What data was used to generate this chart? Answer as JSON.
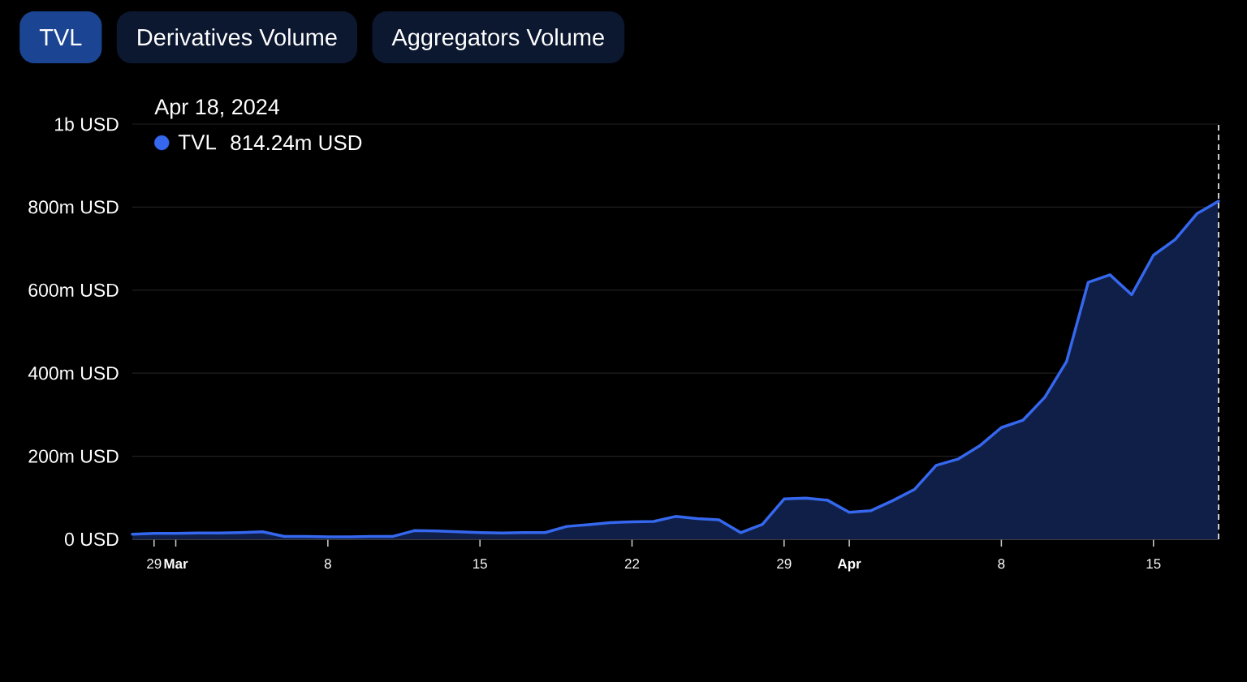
{
  "chart_data": {
    "type": "area",
    "annotations": [
      "TVL",
      "Derivatives Volume",
      "Aggregators Volume",
      "814.24m USD"
    ],
    "legend_title": "Apr 18, 2024",
    "x": [
      "2024-02-28",
      "2024-02-29",
      "2024-03-01",
      "2024-03-02",
      "2024-03-03",
      "2024-03-04",
      "2024-03-05",
      "2024-03-06",
      "2024-03-07",
      "2024-03-08",
      "2024-03-09",
      "2024-03-10",
      "2024-03-11",
      "2024-03-12",
      "2024-03-13",
      "2024-03-14",
      "2024-03-15",
      "2024-03-16",
      "2024-03-17",
      "2024-03-18",
      "2024-03-19",
      "2024-03-20",
      "2024-03-21",
      "2024-03-22",
      "2024-03-23",
      "2024-03-24",
      "2024-03-25",
      "2024-03-26",
      "2024-03-27",
      "2024-03-28",
      "2024-03-29",
      "2024-03-30",
      "2024-03-31",
      "2024-04-01",
      "2024-04-02",
      "2024-04-03",
      "2024-04-04",
      "2024-04-05",
      "2024-04-06",
      "2024-04-07",
      "2024-04-08",
      "2024-04-09",
      "2024-04-10",
      "2024-04-11",
      "2024-04-12",
      "2024-04-13",
      "2024-04-14",
      "2024-04-15",
      "2024-04-16",
      "2024-04-17",
      "2024-04-18"
    ],
    "series": [
      {
        "name": "TVL",
        "color": "#3568ee",
        "values": [
          12000000,
          14000000,
          14000000,
          15000000,
          15000000,
          16000000,
          18000000,
          7000000,
          7000000,
          6000000,
          6000000,
          7000000,
          7000000,
          21000000,
          20000000,
          18000000,
          16000000,
          15000000,
          16000000,
          16000000,
          31000000,
          35000000,
          40000000,
          42000000,
          43000000,
          55000000,
          50000000,
          47000000,
          16000000,
          36000000,
          97000000,
          99000000,
          94000000,
          65000000,
          69000000,
          93000000,
          120000000,
          178000000,
          193000000,
          225000000,
          269000000,
          287000000,
          342000000,
          428000000,
          619000000,
          637000000,
          589000000,
          684000000,
          722000000,
          784000000,
          814240000
        ]
      }
    ],
    "xlim": [
      "2024-02-28",
      "2024-04-18"
    ],
    "xticks": [
      {
        "value": "2024-02-29",
        "label": "29"
      },
      {
        "value": "2024-03-01",
        "label": "Mar"
      },
      {
        "value": "2024-03-08",
        "label": "8"
      },
      {
        "value": "2024-03-15",
        "label": "15"
      },
      {
        "value": "2024-03-22",
        "label": "22"
      },
      {
        "value": "2024-03-29",
        "label": "29"
      },
      {
        "value": "2024-04-01",
        "label": "Apr"
      },
      {
        "value": "2024-04-08",
        "label": "8"
      },
      {
        "value": "2024-04-15",
        "label": "15"
      }
    ],
    "ylim": [
      0,
      1000000000
    ],
    "yticks": [
      {
        "value": 0,
        "label": "0 USD"
      },
      {
        "value": 200000000,
        "label": "200m USD"
      },
      {
        "value": 400000000,
        "label": "400m USD"
      },
      {
        "value": 600000000,
        "label": "600m USD"
      },
      {
        "value": 800000000,
        "label": "800m USD"
      },
      {
        "value": 1000000000,
        "label": "1b USD"
      }
    ],
    "grid": "y",
    "legend": "top left",
    "ref_lines": [
      {
        "axis": "x",
        "value": "2024-04-18",
        "color": "#ffffff",
        "line_style": "dashed"
      }
    ]
  }
}
